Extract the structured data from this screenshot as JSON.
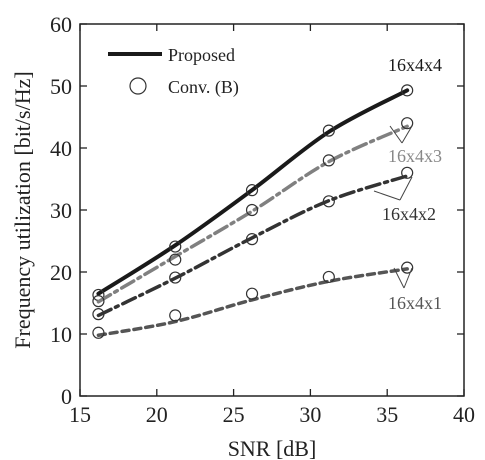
{
  "chart_data": {
    "type": "line",
    "xlabel": "SNR [dB]",
    "ylabel": "Frequency utilization [bit/s/Hz]",
    "xlim": [
      15,
      40
    ],
    "ylim": [
      0,
      60
    ],
    "xticks": [
      "15",
      "20",
      "25",
      "30",
      "35",
      "40"
    ],
    "yticks": [
      "0",
      "10",
      "20",
      "30",
      "40",
      "50",
      "60"
    ],
    "grid": false,
    "legend": {
      "position": "top-left",
      "entries": [
        {
          "label": "Proposed",
          "style": "solid-line"
        },
        {
          "label": "Conv. (B)",
          "style": "open-circle"
        }
      ]
    },
    "series": [
      {
        "label": "16x4x4",
        "color": "#1a1a1a",
        "dash": "solid",
        "proposed": {
          "x": [
            16.2,
            21.2,
            26.2,
            31.2,
            36.3
          ],
          "y": [
            16.5,
            24.3,
            33.2,
            42.6,
            49.3
          ]
        },
        "conv": {
          "x": [
            16.2,
            21.2,
            26.2,
            31.2,
            36.3
          ],
          "y": [
            16.3,
            24.1,
            33.2,
            42.8,
            49.3
          ]
        }
      },
      {
        "label": "16x4x3",
        "color": "#808080",
        "dash": "dash-dot",
        "proposed": {
          "x": [
            16.2,
            21.2,
            26.2,
            31.2,
            36.3
          ],
          "y": [
            15.2,
            22.5,
            29.8,
            37.8,
            43.5
          ]
        },
        "conv": {
          "x": [
            16.2,
            21.2,
            26.2,
            31.2,
            36.3
          ],
          "y": [
            15.3,
            22.0,
            30.0,
            38.0,
            44.0
          ]
        }
      },
      {
        "label": "16x4x2",
        "color": "#333333",
        "dash": "dash-dot",
        "proposed": {
          "x": [
            16.2,
            21.2,
            26.2,
            31.2,
            36.3
          ],
          "y": [
            13.0,
            19.0,
            25.5,
            31.5,
            35.5
          ]
        },
        "conv": {
          "x": [
            16.2,
            21.2,
            26.2,
            31.2,
            36.3
          ],
          "y": [
            13.2,
            19.1,
            25.3,
            31.4,
            36.0
          ]
        }
      },
      {
        "label": "16x4x1",
        "color": "#555555",
        "dash": "dashed",
        "proposed": {
          "x": [
            16.2,
            21.2,
            26.2,
            31.2,
            36.3
          ],
          "y": [
            9.8,
            12.0,
            15.5,
            18.5,
            20.5
          ]
        },
        "conv": {
          "x": [
            16.2,
            21.2,
            26.2,
            31.2,
            36.3
          ],
          "y": [
            10.2,
            13.0,
            16.5,
            19.2,
            20.7
          ]
        }
      }
    ]
  }
}
